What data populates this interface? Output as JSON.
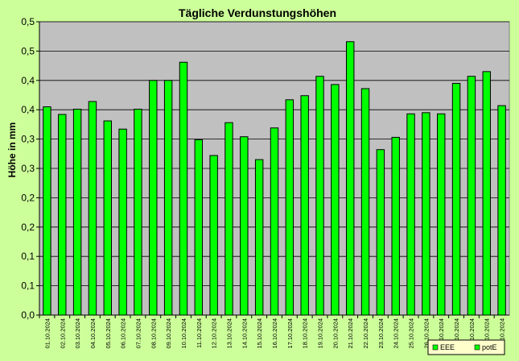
{
  "chart_data": {
    "type": "bar",
    "title": "Tägliche Verdunstungshöhen",
    "ylabel": "Höhe in mm",
    "xlabel": "",
    "ylim": [
      0,
      0.5
    ],
    "y_ticks": [
      0,
      0.05,
      0.1,
      0.15,
      0.2,
      0.25,
      0.3,
      0.35,
      0.4,
      0.45,
      0.5
    ],
    "y_tick_labels": [
      "0,0",
      "0,1",
      "0,1",
      "0,2",
      "0,2",
      "0,3",
      "0,3",
      "0,4",
      "0,4",
      "0,5",
      "0,5"
    ],
    "grid": true,
    "legend_position": "bottom-right",
    "colors": {
      "bar": "#00ff00",
      "plot_bg": "#c0c0c0",
      "page_bg": "#ccff99",
      "legend_bg": "#ffffcc"
    },
    "categories": [
      "01.10.2024",
      "02.10.2024",
      "03.10.2024",
      "04.10.2024",
      "05.10.2024",
      "06.10.2024",
      "07.10.2024",
      "08.10.2024",
      "09.10.2024",
      "10.10.2024",
      "11.10.2024",
      "12.10.2024",
      "13.10.2024",
      "14.10.2024",
      "15.10.2024",
      "16.10.2024",
      "17.10.2024",
      "18.10.2024",
      "19.10.2024",
      "20.10.2024",
      "21.10.2024",
      "22.10.2024",
      "23.10.2024",
      "24.10.2024",
      "25.10.2024",
      "26.10.2024",
      "27.10.2024",
      "28.10.2024",
      "29.10.2024",
      "30.10.2024",
      "31.10.2024"
    ],
    "series": [
      {
        "name": "potE",
        "values": [
          0.355,
          0.342,
          0.351,
          0.364,
          0.331,
          0.317,
          0.351,
          0.4,
          0.4,
          0.431,
          0.299,
          0.272,
          0.328,
          0.304,
          0.265,
          0.319,
          0.367,
          0.374,
          0.407,
          0.393,
          0.466,
          0.386,
          0.282,
          0.303,
          0.343,
          0.345,
          0.343,
          0.395,
          0.407,
          0.415,
          0.357
        ]
      }
    ],
    "legend": [
      "EEE",
      "potE"
    ]
  }
}
